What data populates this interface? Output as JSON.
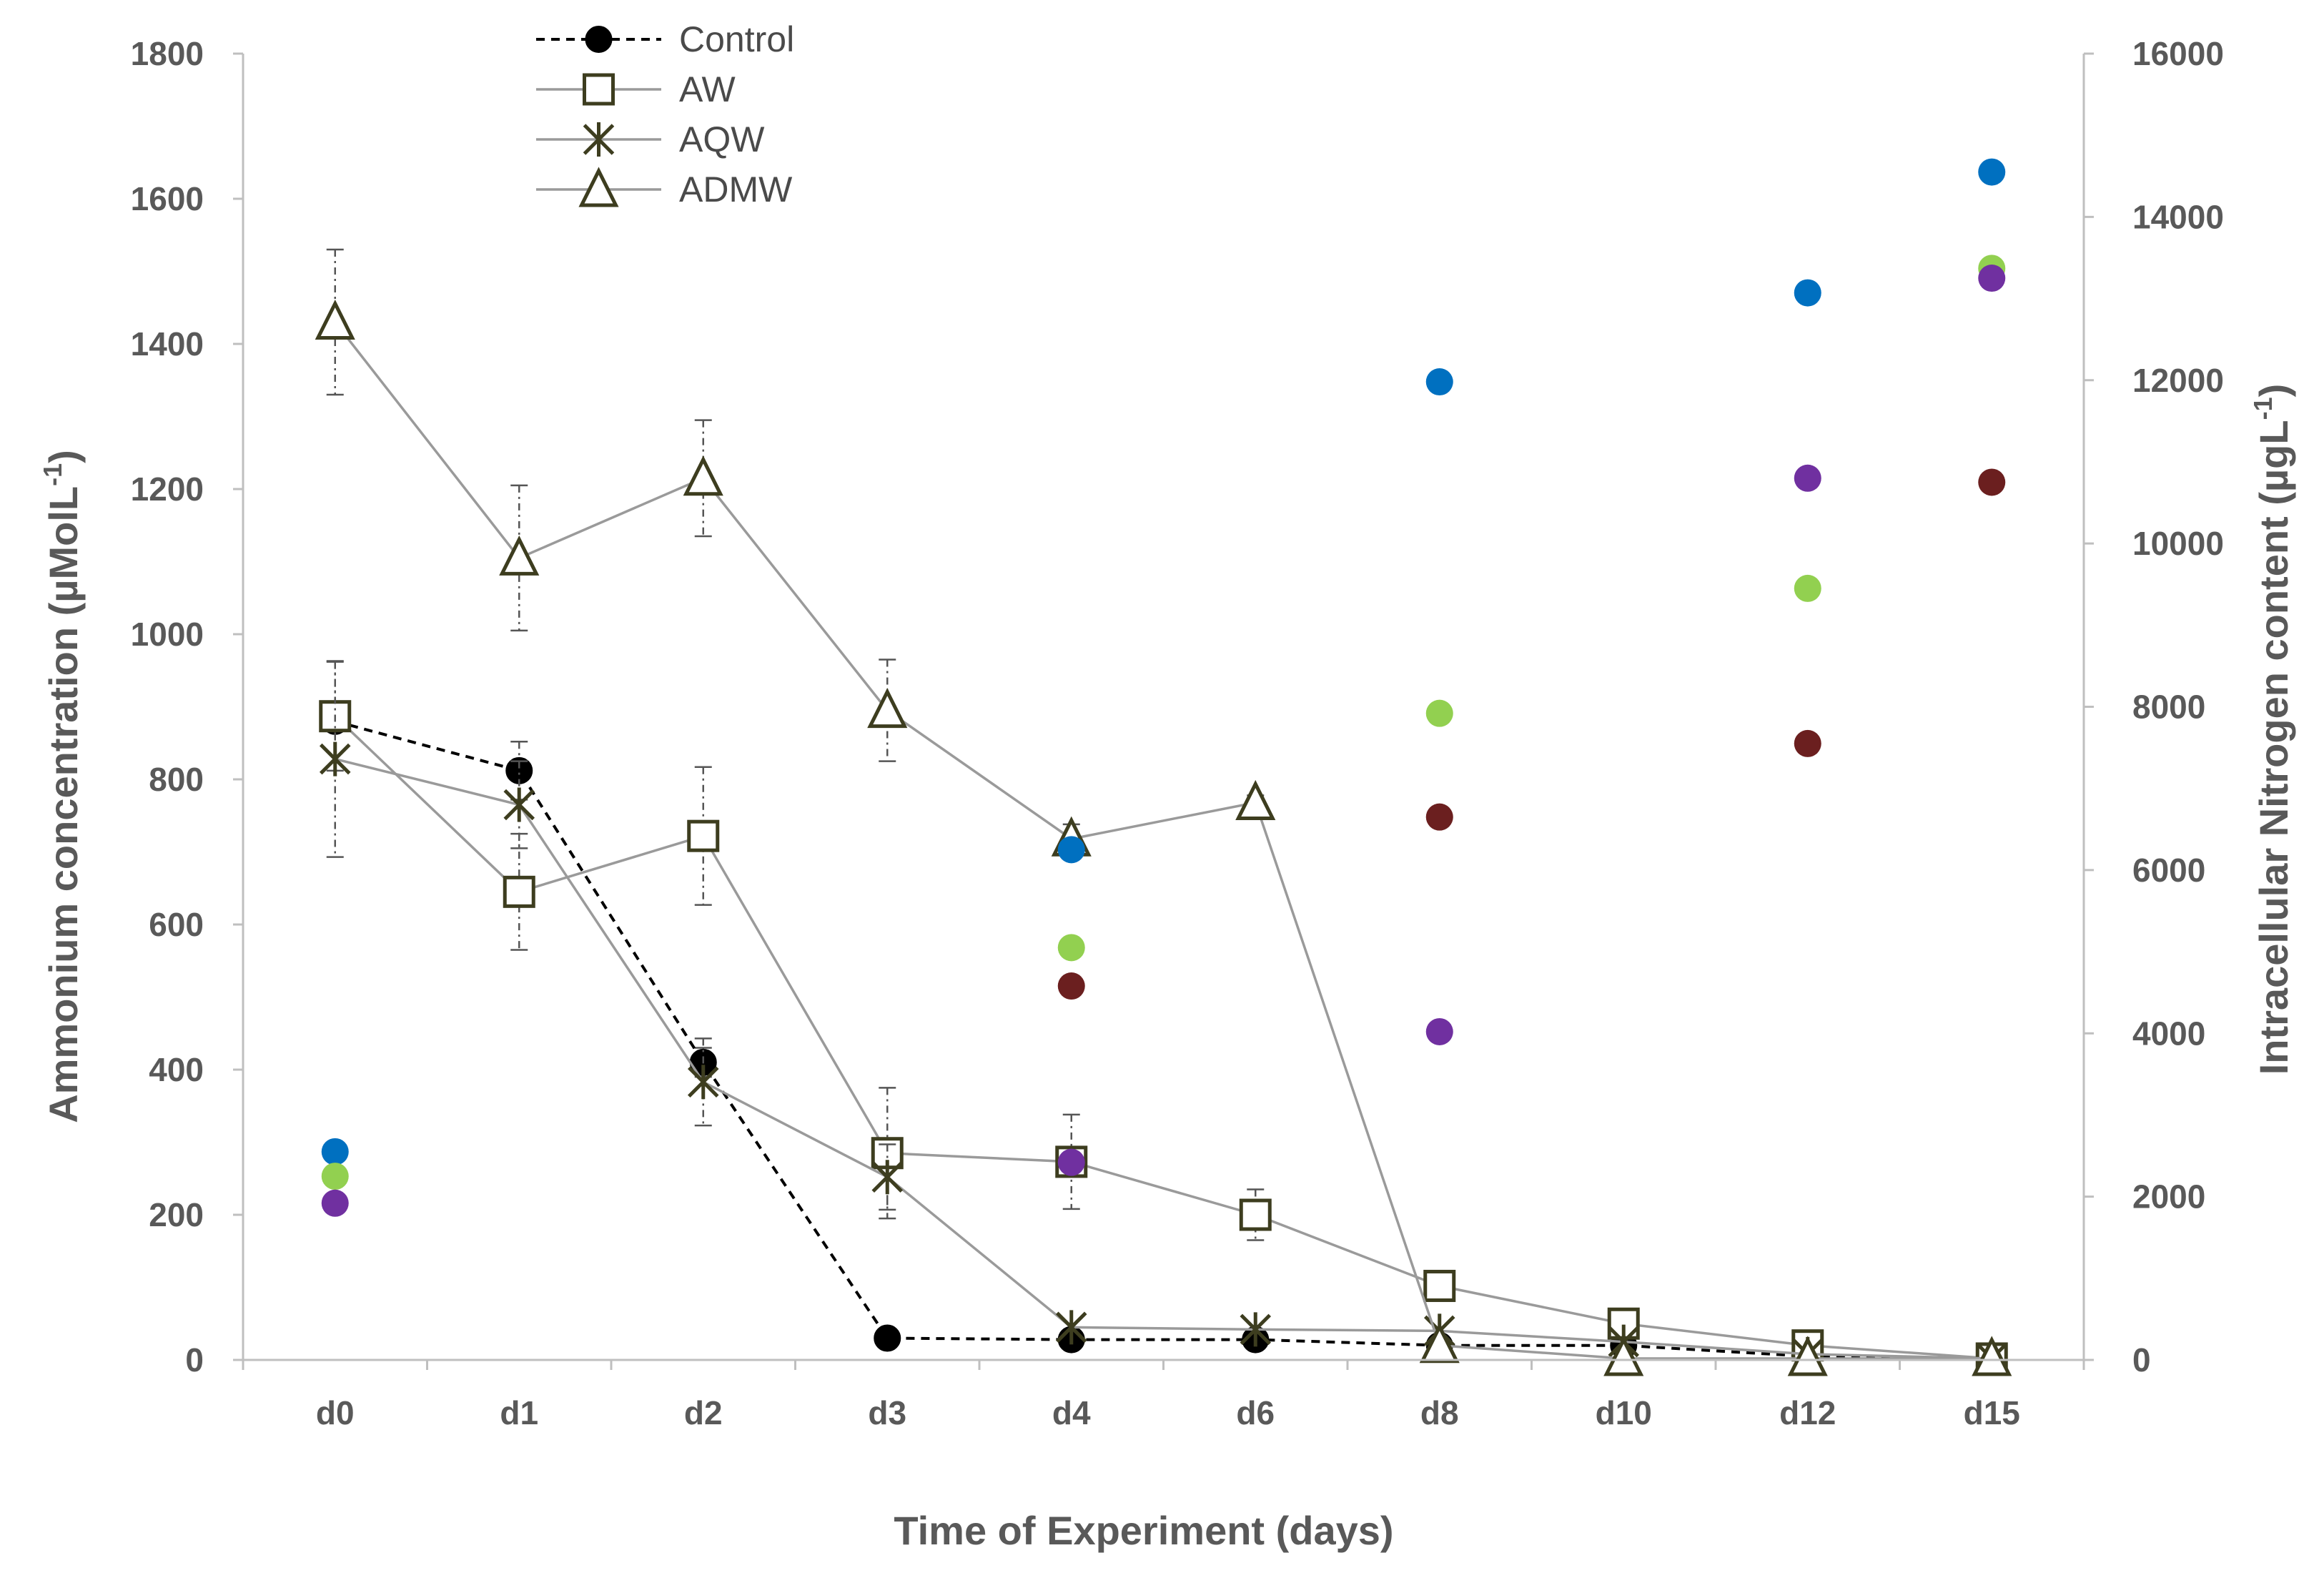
{
  "chart_data": {
    "type": "line",
    "title": "",
    "xlabel": "Time of Experiment (days)",
    "ylabel": "Ammonium concentration (µMolL-1)",
    "ylabel_main": "Ammonium concentration (µMolL",
    "ylabel_sup": "-1",
    "ylabel_end": ")",
    "y2label": "Intracellular Nitrogen content (µgL-1)",
    "y2label_main": "Intracellular Nitrogen content (µgL",
    "y2label_sup": "-1",
    "y2label_end": ")",
    "ylim": [
      0,
      1800
    ],
    "y2lim": [
      0,
      16000
    ],
    "yticks": [
      0,
      200,
      400,
      600,
      800,
      1000,
      1200,
      1400,
      1600,
      1800
    ],
    "y2ticks": [
      0,
      2000,
      4000,
      6000,
      8000,
      10000,
      12000,
      14000,
      16000
    ],
    "categories": [
      "d0",
      "d1",
      "d2",
      "d3",
      "d4",
      "d6",
      "d8",
      "d10",
      "d12",
      "d15"
    ],
    "legend_position": "top-left",
    "series": [
      {
        "name": "Control",
        "marker": "filled-circle",
        "line": "dashed",
        "color": "#000000",
        "values": [
          880,
          812,
          410,
          30,
          28,
          28,
          20,
          20,
          5,
          2
        ],
        "errors": [
          0,
          40,
          20,
          0,
          0,
          0,
          0,
          0,
          0,
          0
        ]
      },
      {
        "name": "AW",
        "marker": "open-square",
        "line": "solid",
        "color": "#3d3d1f",
        "values": [
          887,
          645,
          722,
          285,
          273,
          200,
          102,
          50,
          20,
          2
        ],
        "errors": [
          75,
          80,
          95,
          90,
          65,
          35,
          15,
          0,
          0,
          0
        ]
      },
      {
        "name": "AQW",
        "marker": "asterisk",
        "line": "solid",
        "color": "#3d3d1f",
        "values": [
          828,
          765,
          383,
          252,
          45,
          42,
          40,
          25,
          8,
          2
        ],
        "errors": [
          135,
          60,
          60,
          45,
          0,
          0,
          0,
          0,
          0,
          0
        ]
      },
      {
        "name": "ADMW",
        "marker": "open-triangle",
        "line": "solid",
        "color": "#3d3d1f",
        "values": [
          1430,
          1105,
          1215,
          895,
          718,
          768,
          20,
          2,
          2,
          2
        ],
        "errors": [
          100,
          100,
          80,
          70,
          20,
          10,
          0,
          0,
          0,
          0
        ]
      }
    ],
    "scatter_series": [
      {
        "name": "blue",
        "color": "#0070C0",
        "axis": "right",
        "points": [
          [
            "d0",
            2550
          ],
          [
            "d4",
            6250
          ],
          [
            "d8",
            11980
          ],
          [
            "d12",
            13070
          ],
          [
            "d15",
            14550
          ]
        ]
      },
      {
        "name": "green",
        "color": "#92D050",
        "axis": "right",
        "points": [
          [
            "d0",
            2250
          ],
          [
            "d4",
            5050
          ],
          [
            "d8",
            7920
          ],
          [
            "d12",
            9450
          ],
          [
            "d15",
            13370
          ]
        ]
      },
      {
        "name": "purple",
        "color": "#7030A0",
        "axis": "right",
        "points": [
          [
            "d0",
            1920
          ],
          [
            "d4",
            2420
          ],
          [
            "d8",
            4020
          ],
          [
            "d12",
            10800
          ],
          [
            "d15",
            13250
          ]
        ]
      },
      {
        "name": "dark-red",
        "color": "#6B1F1F",
        "axis": "right",
        "points": [
          [
            "d4",
            4580
          ],
          [
            "d8",
            6650
          ],
          [
            "d12",
            7550
          ],
          [
            "d15",
            10750
          ]
        ]
      }
    ]
  }
}
